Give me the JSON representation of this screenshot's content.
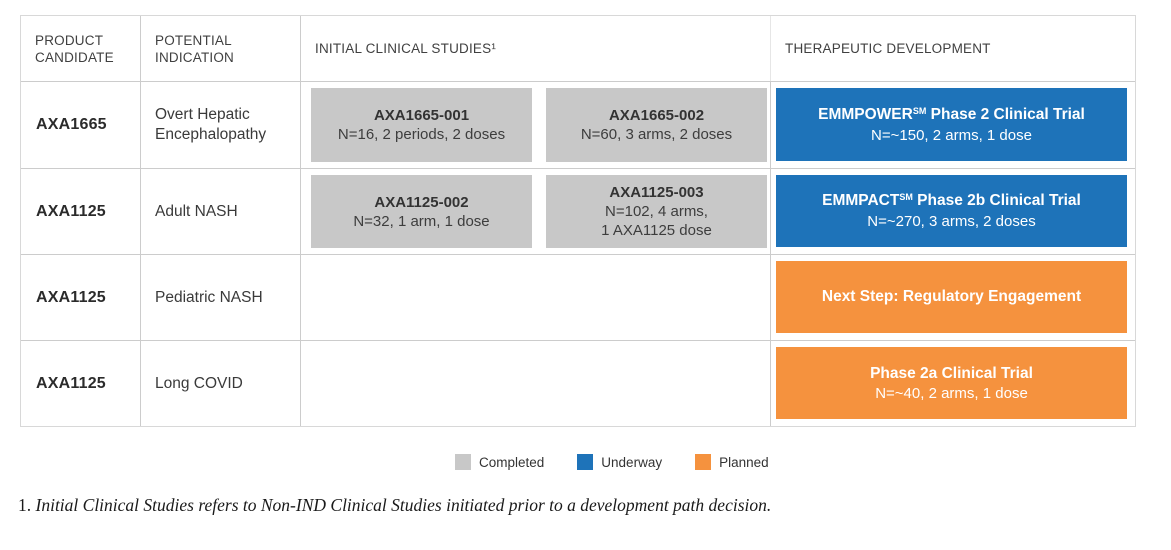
{
  "table": {
    "headers": {
      "product_candidate": "PRODUCT CANDIDATE",
      "potential_indication": "POTENTIAL INDICATION",
      "initial_clinical_studies": "INITIAL CLINICAL STUDIES¹",
      "therapeutic_development": "THERAPEUTIC DEVELOPMENT"
    },
    "rows": [
      {
        "candidate": "AXA1665",
        "indication": "Overt Hepatic Encephalopathy",
        "studies": [
          {
            "title": "AXA1665-001",
            "subtitle": "N=16, 2 periods, 2 doses"
          },
          {
            "title": "AXA1665-002",
            "subtitle": "N=60, 3 arms, 2 doses"
          }
        ],
        "development": {
          "brand": "EMMPOWER",
          "sup": "SM",
          "title_rest": " Phase 2 Clinical Trial",
          "subtitle": "N=~150, 2 arms, 1 dose",
          "status": "Underway",
          "color": "#1e73b9"
        }
      },
      {
        "candidate": "AXA1125",
        "indication": "Adult NASH",
        "studies": [
          {
            "title": "AXA1125-002",
            "subtitle": "N=32, 1 arm, 1 dose"
          },
          {
            "title": "AXA1125-003",
            "subtitle": "N=102, 4 arms,",
            "subtitle2": "1 AXA1125 dose"
          }
        ],
        "development": {
          "brand": "EMMPACT",
          "sup": "SM",
          "title_rest": " Phase 2b Clinical Trial",
          "subtitle": "N=~270, 3 arms, 2 doses",
          "status": "Underway",
          "color": "#1e73b9"
        }
      },
      {
        "candidate": "AXA1125",
        "indication": "Pediatric NASH",
        "studies": [],
        "development": {
          "brand": "Next Step: Regulatory Engagement",
          "sup": "",
          "title_rest": "",
          "subtitle": "",
          "status": "Planned",
          "color": "#f5923e"
        }
      },
      {
        "candidate": "AXA1125",
        "indication": "Long COVID",
        "studies": [],
        "development": {
          "brand": "Phase 2a Clinical Trial",
          "sup": "",
          "title_rest": "",
          "subtitle": "N=~40, 2 arms, 1 dose",
          "status": "Planned",
          "color": "#f5923e"
        }
      }
    ]
  },
  "colors": {
    "completed": "#c8c8c8",
    "underway": "#1e73b9",
    "planned": "#f5923e"
  },
  "legend": {
    "items": [
      {
        "label": "Completed",
        "color": "#c8c8c8"
      },
      {
        "label": "Underway",
        "color": "#1e73b9"
      },
      {
        "label": "Planned",
        "color": "#f5923e"
      }
    ]
  },
  "footnote": {
    "number": "1.",
    "text": "Initial Clinical Studies refers to Non-IND Clinical Studies initiated prior to a development path decision."
  }
}
